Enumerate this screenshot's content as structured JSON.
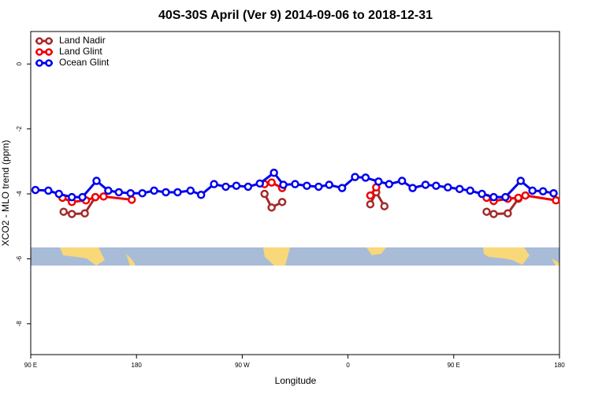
{
  "chart_data": {
    "type": "line",
    "title": "40S-30S April (Ver 9)   2014-09-06 to 2018-12-31",
    "x_label": "Longitude",
    "y_label": "XCO2 - MLO trend (ppm)",
    "xlim": [
      90,
      540
    ],
    "ylim": [
      -8.95,
      1.0
    ],
    "xticks": [
      {
        "value": 90,
        "label": "90 E"
      },
      180,
      {
        "value": 270,
        "label": "90 W"
      },
      {
        "value": 360,
        "label": "0"
      },
      {
        "value": 450,
        "label": "90 E"
      },
      {
        "value": 540,
        "label": "180"
      }
    ],
    "yticks": [
      0,
      -2,
      -4,
      -6,
      -8
    ],
    "legend": "top-left",
    "series": [
      {
        "name": "Land Nadir",
        "color": "#a52a2a",
        "x": [
          118,
          125,
          136,
          145,
          null,
          289,
          295,
          304,
          null,
          379,
          384,
          391,
          null,
          478,
          484,
          496,
          505
        ],
        "values": [
          -4.55,
          -4.62,
          -4.6,
          -4.1,
          null,
          -4.0,
          -4.42,
          -4.25,
          null,
          -4.32,
          -3.95,
          -4.38,
          null,
          -4.55,
          -4.62,
          -4.6,
          -4.15
        ]
      },
      {
        "name": "Land Glint",
        "color": "#ee0000",
        "x": [
          117,
          125,
          137,
          145,
          152,
          176,
          null,
          289,
          295,
          304,
          null,
          379,
          384,
          null,
          478,
          484,
          496,
          505,
          511,
          537
        ],
        "values": [
          -4.12,
          -4.25,
          -4.2,
          -4.1,
          -4.08,
          -4.18,
          null,
          -3.7,
          -3.65,
          -3.82,
          null,
          -4.05,
          -3.8,
          null,
          -4.12,
          -4.22,
          -4.15,
          -4.12,
          -4.05,
          -4.2
        ]
      },
      {
        "name": "Ocean Glint",
        "color": "#0000ee",
        "x": [
          94,
          105,
          114,
          125,
          134,
          146,
          156,
          165,
          175,
          185,
          195,
          205,
          215,
          226,
          235,
          246,
          256,
          265,
          275,
          285,
          297,
          305,
          315,
          325,
          335,
          344,
          355,
          366,
          375,
          386,
          395,
          406,
          415,
          426,
          435,
          445,
          455,
          464,
          474,
          484,
          494,
          507,
          517,
          526,
          535
        ],
        "values": [
          -3.88,
          -3.9,
          -4.0,
          -4.1,
          -4.1,
          -3.6,
          -3.9,
          -3.95,
          -3.98,
          -3.98,
          -3.9,
          -3.95,
          -3.95,
          -3.9,
          -4.03,
          -3.7,
          -3.78,
          -3.75,
          -3.78,
          -3.68,
          -3.35,
          -3.72,
          -3.7,
          -3.75,
          -3.78,
          -3.72,
          -3.82,
          -3.48,
          -3.5,
          -3.62,
          -3.7,
          -3.6,
          -3.82,
          -3.72,
          -3.75,
          -3.8,
          -3.85,
          -3.9,
          -4.0,
          -4.1,
          -4.1,
          -3.6,
          -3.9,
          -3.92,
          -3.98
        ]
      }
    ]
  }
}
